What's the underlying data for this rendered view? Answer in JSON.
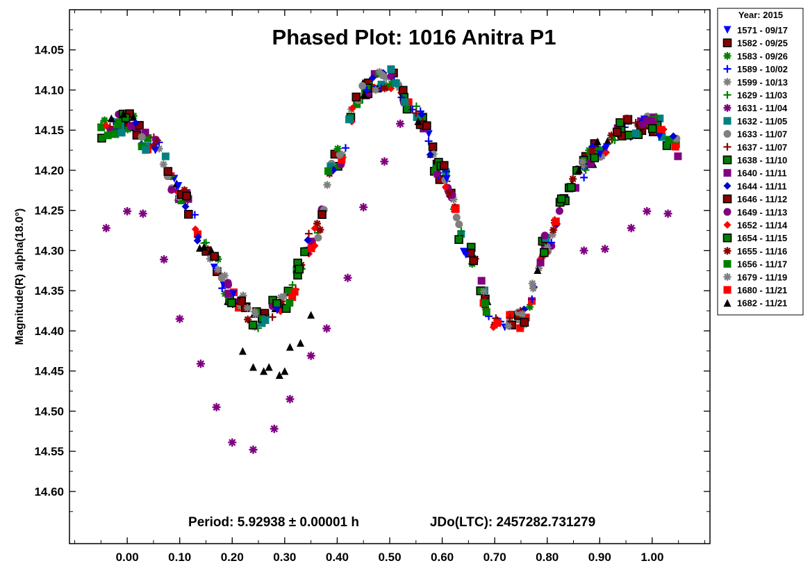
{
  "chart_data": {
    "type": "scatter",
    "title": "Phased Plot: 1016 Anitra  P1",
    "ylabel": "Magnitude(R) alpha(18.0°)",
    "xlabel": "",
    "period_text": "Period: 5.92938 ± 0.00001 h",
    "epoch_text": "JDo(LTC): 2457282.731279",
    "legend_title": "Year: 2015",
    "xlim": [
      -0.11,
      1.11
    ],
    "ylim": [
      14.0,
      14.665
    ],
    "y_inverted": true,
    "grid": false,
    "legend_position": "outside-right",
    "x_ticks": [
      "0.00",
      "0.10",
      "0.20",
      "0.30",
      "0.40",
      "0.50",
      "0.60",
      "0.70",
      "0.80",
      "0.90",
      "1.00"
    ],
    "y_ticks": [
      "14.05",
      "14.10",
      "14.15",
      "14.20",
      "14.25",
      "14.30",
      "14.35",
      "14.40",
      "14.45",
      "14.50",
      "14.55",
      "14.60"
    ],
    "lightcurve_model": {
      "x": [
        0.0,
        0.05,
        0.1,
        0.15,
        0.2,
        0.25,
        0.3,
        0.35,
        0.4,
        0.45,
        0.5,
        0.55,
        0.6,
        0.65,
        0.7,
        0.75,
        0.8,
        0.85,
        0.9,
        0.95,
        1.0
      ],
      "y": [
        14.14,
        14.17,
        14.225,
        14.295,
        14.355,
        14.385,
        14.365,
        14.29,
        14.185,
        14.095,
        14.085,
        14.125,
        14.205,
        14.305,
        14.385,
        14.385,
        14.29,
        14.21,
        14.175,
        14.148,
        14.14
      ]
    },
    "outlier_points_1631": [
      {
        "x": -0.04,
        "y": 14.272
      },
      {
        "x": 0.0,
        "y": 14.251
      },
      {
        "x": 0.03,
        "y": 14.254
      },
      {
        "x": 0.07,
        "y": 14.311
      },
      {
        "x": 0.1,
        "y": 14.385
      },
      {
        "x": 0.14,
        "y": 14.441
      },
      {
        "x": 0.17,
        "y": 14.495
      },
      {
        "x": 0.2,
        "y": 14.539
      },
      {
        "x": 0.24,
        "y": 14.548
      },
      {
        "x": 0.28,
        "y": 14.522
      },
      {
        "x": 0.31,
        "y": 14.485
      },
      {
        "x": 0.35,
        "y": 14.431
      },
      {
        "x": 0.38,
        "y": 14.397
      },
      {
        "x": 0.42,
        "y": 14.334
      },
      {
        "x": 0.45,
        "y": 14.246
      },
      {
        "x": 0.49,
        "y": 14.189
      },
      {
        "x": 0.52,
        "y": 14.142
      },
      {
        "x": 0.59,
        "y": 14.205
      },
      {
        "x": 0.87,
        "y": 14.3
      },
      {
        "x": 0.91,
        "y": 14.298
      },
      {
        "x": 0.96,
        "y": 14.272
      },
      {
        "x": 0.99,
        "y": 14.251
      },
      {
        "x": 1.03,
        "y": 14.254
      }
    ],
    "outlier_points_1682": [
      {
        "x": 0.22,
        "y": 14.425
      },
      {
        "x": 0.24,
        "y": 14.445
      },
      {
        "x": 0.26,
        "y": 14.45
      },
      {
        "x": 0.27,
        "y": 14.445
      },
      {
        "x": 0.29,
        "y": 14.455
      },
      {
        "x": 0.3,
        "y": 14.45
      },
      {
        "x": 0.31,
        "y": 14.42
      },
      {
        "x": 0.33,
        "y": 14.415
      },
      {
        "x": 0.35,
        "y": 14.38
      }
    ],
    "series": [
      {
        "name": "1571 - 09/17",
        "color": "#0000FF",
        "marker": "triangle-down"
      },
      {
        "name": "1582 - 09/25",
        "color": "#8B0000",
        "marker": "square-outlined"
      },
      {
        "name": "1583 - 09/26",
        "color": "#008000",
        "marker": "star"
      },
      {
        "name": "1589 - 10/02",
        "color": "#0000FF",
        "marker": "plus"
      },
      {
        "name": "1599 - 10/13",
        "color": "#808080",
        "marker": "star"
      },
      {
        "name": "1629 - 11/03",
        "color": "#008000",
        "marker": "plus"
      },
      {
        "name": "1631 - 11/04",
        "color": "#800080",
        "marker": "star"
      },
      {
        "name": "1632 - 11/05",
        "color": "#008080",
        "marker": "square"
      },
      {
        "name": "1633 - 11/07",
        "color": "#808080",
        "marker": "circle"
      },
      {
        "name": "1637 - 11/07",
        "color": "#8B0000",
        "marker": "plus"
      },
      {
        "name": "1638 - 11/10",
        "color": "#008000",
        "marker": "square-outlined"
      },
      {
        "name": "1640 - 11/11",
        "color": "#800080",
        "marker": "square"
      },
      {
        "name": "1644 - 11/11",
        "color": "#0000CD",
        "marker": "diamond"
      },
      {
        "name": "1646 - 11/12",
        "color": "#8B0000",
        "marker": "square-outlined"
      },
      {
        "name": "1649 - 11/13",
        "color": "#800080",
        "marker": "circle"
      },
      {
        "name": "1652 - 11/14",
        "color": "#FF0000",
        "marker": "diamond"
      },
      {
        "name": "1654 - 11/15",
        "color": "#008000",
        "marker": "square-outlined"
      },
      {
        "name": "1655 - 11/16",
        "color": "#8B0000",
        "marker": "star"
      },
      {
        "name": "1656 - 11/17",
        "color": "#008000",
        "marker": "square"
      },
      {
        "name": "1679 - 11/19",
        "color": "#808080",
        "marker": "star"
      },
      {
        "name": "1680 - 11/21",
        "color": "#FF0000",
        "marker": "square"
      },
      {
        "name": "1682 - 11/21",
        "color": "#000000",
        "marker": "triangle-up"
      }
    ]
  }
}
